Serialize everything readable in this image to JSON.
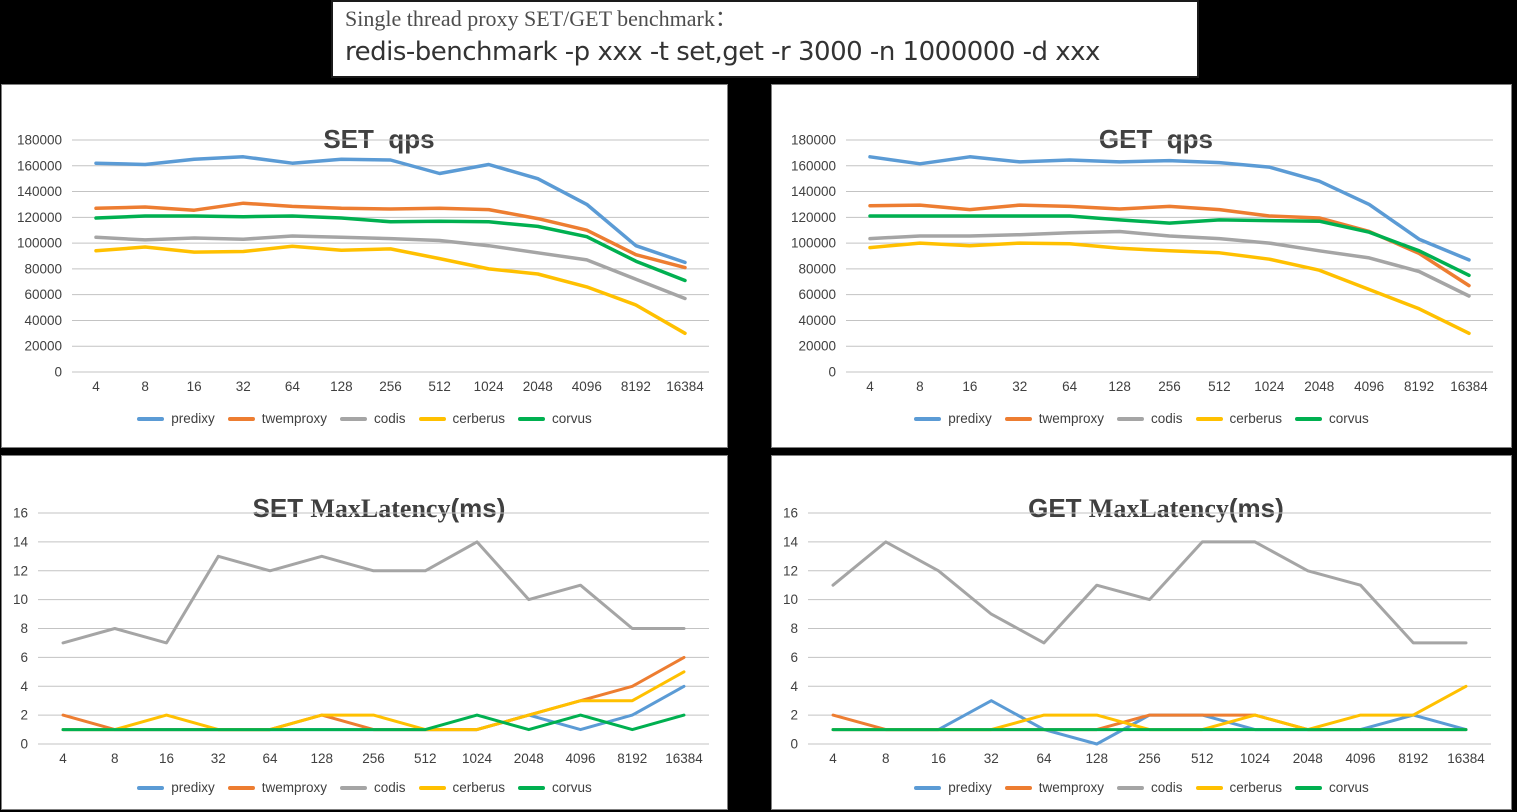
{
  "header": {
    "line1": "Single thread proxy SET/GET benchmark：",
    "line2": "redis-benchmark -p xxx -t set,get -r 3000 -n 1000000 -d xxx"
  },
  "colors": {
    "predixy": "#5B9BD5",
    "twemproxy": "#ED7D31",
    "codis": "#A5A5A5",
    "cerberus": "#FFC000",
    "corvus": "#00B050",
    "gridline": "#C3C3C3",
    "axis_text": "#404040",
    "panel_border": "#7f7f7f",
    "background": "#000000"
  },
  "legend": {
    "items": [
      "predixy",
      "twemproxy",
      "codis",
      "cerberus",
      "corvus"
    ]
  },
  "chart_data": [
    {
      "id": "set-qps",
      "type": "line",
      "title": {
        "lead": "SET",
        "serif": "",
        "tail": "qps"
      },
      "xlabel": "",
      "ylabel": "",
      "ylim": [
        0,
        180000
      ],
      "ytick": 20000,
      "grid": true,
      "legend_position": "bottom",
      "categories": [
        "4",
        "8",
        "16",
        "32",
        "64",
        "128",
        "256",
        "512",
        "1024",
        "2048",
        "4096",
        "8192",
        "16384"
      ],
      "series": [
        {
          "name": "predixy",
          "values": [
            162000,
            161000,
            165000,
            167000,
            162000,
            165000,
            164500,
            154000,
            161000,
            150000,
            130000,
            98000,
            85000
          ]
        },
        {
          "name": "twemproxy",
          "values": [
            127000,
            128000,
            125500,
            131000,
            128500,
            127000,
            126500,
            127000,
            126000,
            119000,
            110000,
            91000,
            81000
          ]
        },
        {
          "name": "codis",
          "values": [
            104500,
            102500,
            104000,
            103000,
            105500,
            104500,
            103500,
            102000,
            98000,
            92500,
            87000,
            72000,
            57000
          ]
        },
        {
          "name": "cerberus",
          "values": [
            94000,
            97000,
            93000,
            93500,
            97500,
            94500,
            95500,
            88000,
            80000,
            76000,
            66000,
            52000,
            30000
          ]
        },
        {
          "name": "corvus",
          "values": [
            119500,
            121000,
            121000,
            120500,
            121000,
            119500,
            116500,
            117000,
            116500,
            113000,
            105000,
            86000,
            71000
          ]
        }
      ]
    },
    {
      "id": "get-qps",
      "type": "line",
      "title": {
        "lead": "GET",
        "serif": "",
        "tail": "qps"
      },
      "xlabel": "",
      "ylabel": "",
      "ylim": [
        0,
        180000
      ],
      "ytick": 20000,
      "grid": true,
      "legend_position": "bottom",
      "categories": [
        "4",
        "8",
        "16",
        "32",
        "64",
        "128",
        "256",
        "512",
        "1024",
        "2048",
        "4096",
        "8192",
        "16384"
      ],
      "series": [
        {
          "name": "predixy",
          "values": [
            167000,
            161500,
            167000,
            163000,
            164500,
            163000,
            164000,
            162500,
            159000,
            148000,
            130000,
            103000,
            87000
          ]
        },
        {
          "name": "twemproxy",
          "values": [
            129000,
            129500,
            126000,
            129500,
            128500,
            126500,
            128500,
            126000,
            121000,
            119500,
            109000,
            92000,
            67000
          ]
        },
        {
          "name": "codis",
          "values": [
            103500,
            105500,
            105500,
            106500,
            108000,
            109000,
            105500,
            103500,
            100000,
            94000,
            88500,
            78000,
            59000
          ]
        },
        {
          "name": "cerberus",
          "values": [
            96500,
            100000,
            98000,
            100000,
            99500,
            96000,
            94000,
            92500,
            87500,
            79000,
            64000,
            49000,
            30000
          ]
        },
        {
          "name": "corvus",
          "values": [
            121000,
            121000,
            121000,
            121000,
            121000,
            118000,
            115500,
            118000,
            117500,
            117000,
            108500,
            94000,
            75000
          ]
        }
      ]
    },
    {
      "id": "set-maxlatency",
      "type": "line",
      "title": {
        "lead": "SET",
        "serif": "MaxLatency",
        "tail": "(ms)"
      },
      "xlabel": "",
      "ylabel": "",
      "ylim": [
        0,
        16
      ],
      "ytick": 2,
      "grid": true,
      "legend_position": "bottom",
      "categories": [
        "4",
        "8",
        "16",
        "32",
        "64",
        "128",
        "256",
        "512",
        "1024",
        "2048",
        "4096",
        "8192",
        "16384"
      ],
      "series": [
        {
          "name": "predixy",
          "values": [
            1,
            1,
            1,
            1,
            1,
            1,
            1,
            1,
            1,
            2,
            1,
            2,
            4
          ]
        },
        {
          "name": "twemproxy",
          "values": [
            2,
            1,
            1,
            1,
            1,
            2,
            1,
            1,
            1,
            2,
            3,
            4,
            6
          ]
        },
        {
          "name": "codis",
          "values": [
            7,
            8,
            7,
            13,
            12,
            13,
            12,
            12,
            14,
            10,
            11,
            8,
            8
          ]
        },
        {
          "name": "cerberus",
          "values": [
            1,
            1,
            2,
            1,
            1,
            2,
            2,
            1,
            1,
            2,
            3,
            3,
            5
          ]
        },
        {
          "name": "corvus",
          "values": [
            1,
            1,
            1,
            1,
            1,
            1,
            1,
            1,
            2,
            1,
            2,
            1,
            2
          ]
        }
      ]
    },
    {
      "id": "get-maxlatency",
      "type": "line",
      "title": {
        "lead": "GET",
        "serif": "MaxLatency",
        "tail": "(ms)"
      },
      "xlabel": "",
      "ylabel": "",
      "ylim": [
        0,
        16
      ],
      "ytick": 2,
      "grid": true,
      "legend_position": "bottom",
      "categories": [
        "4",
        "8",
        "16",
        "32",
        "64",
        "128",
        "256",
        "512",
        "1024",
        "2048",
        "4096",
        "8192",
        "16384"
      ],
      "series": [
        {
          "name": "predixy",
          "values": [
            1,
            1,
            1,
            3,
            1,
            0,
            2,
            2,
            1,
            1,
            1,
            2,
            1
          ]
        },
        {
          "name": "twemproxy",
          "values": [
            2,
            1,
            1,
            1,
            1,
            1,
            2,
            2,
            2,
            1,
            1,
            1,
            1
          ]
        },
        {
          "name": "codis",
          "values": [
            11,
            14,
            12,
            9,
            7,
            11,
            10,
            14,
            14,
            12,
            11,
            7,
            7
          ]
        },
        {
          "name": "cerberus",
          "values": [
            1,
            1,
            1,
            1,
            2,
            2,
            1,
            1,
            2,
            1,
            2,
            2,
            4
          ]
        },
        {
          "name": "corvus",
          "values": [
            1,
            1,
            1,
            1,
            1,
            1,
            1,
            1,
            1,
            1,
            1,
            1,
            1
          ]
        }
      ]
    }
  ]
}
